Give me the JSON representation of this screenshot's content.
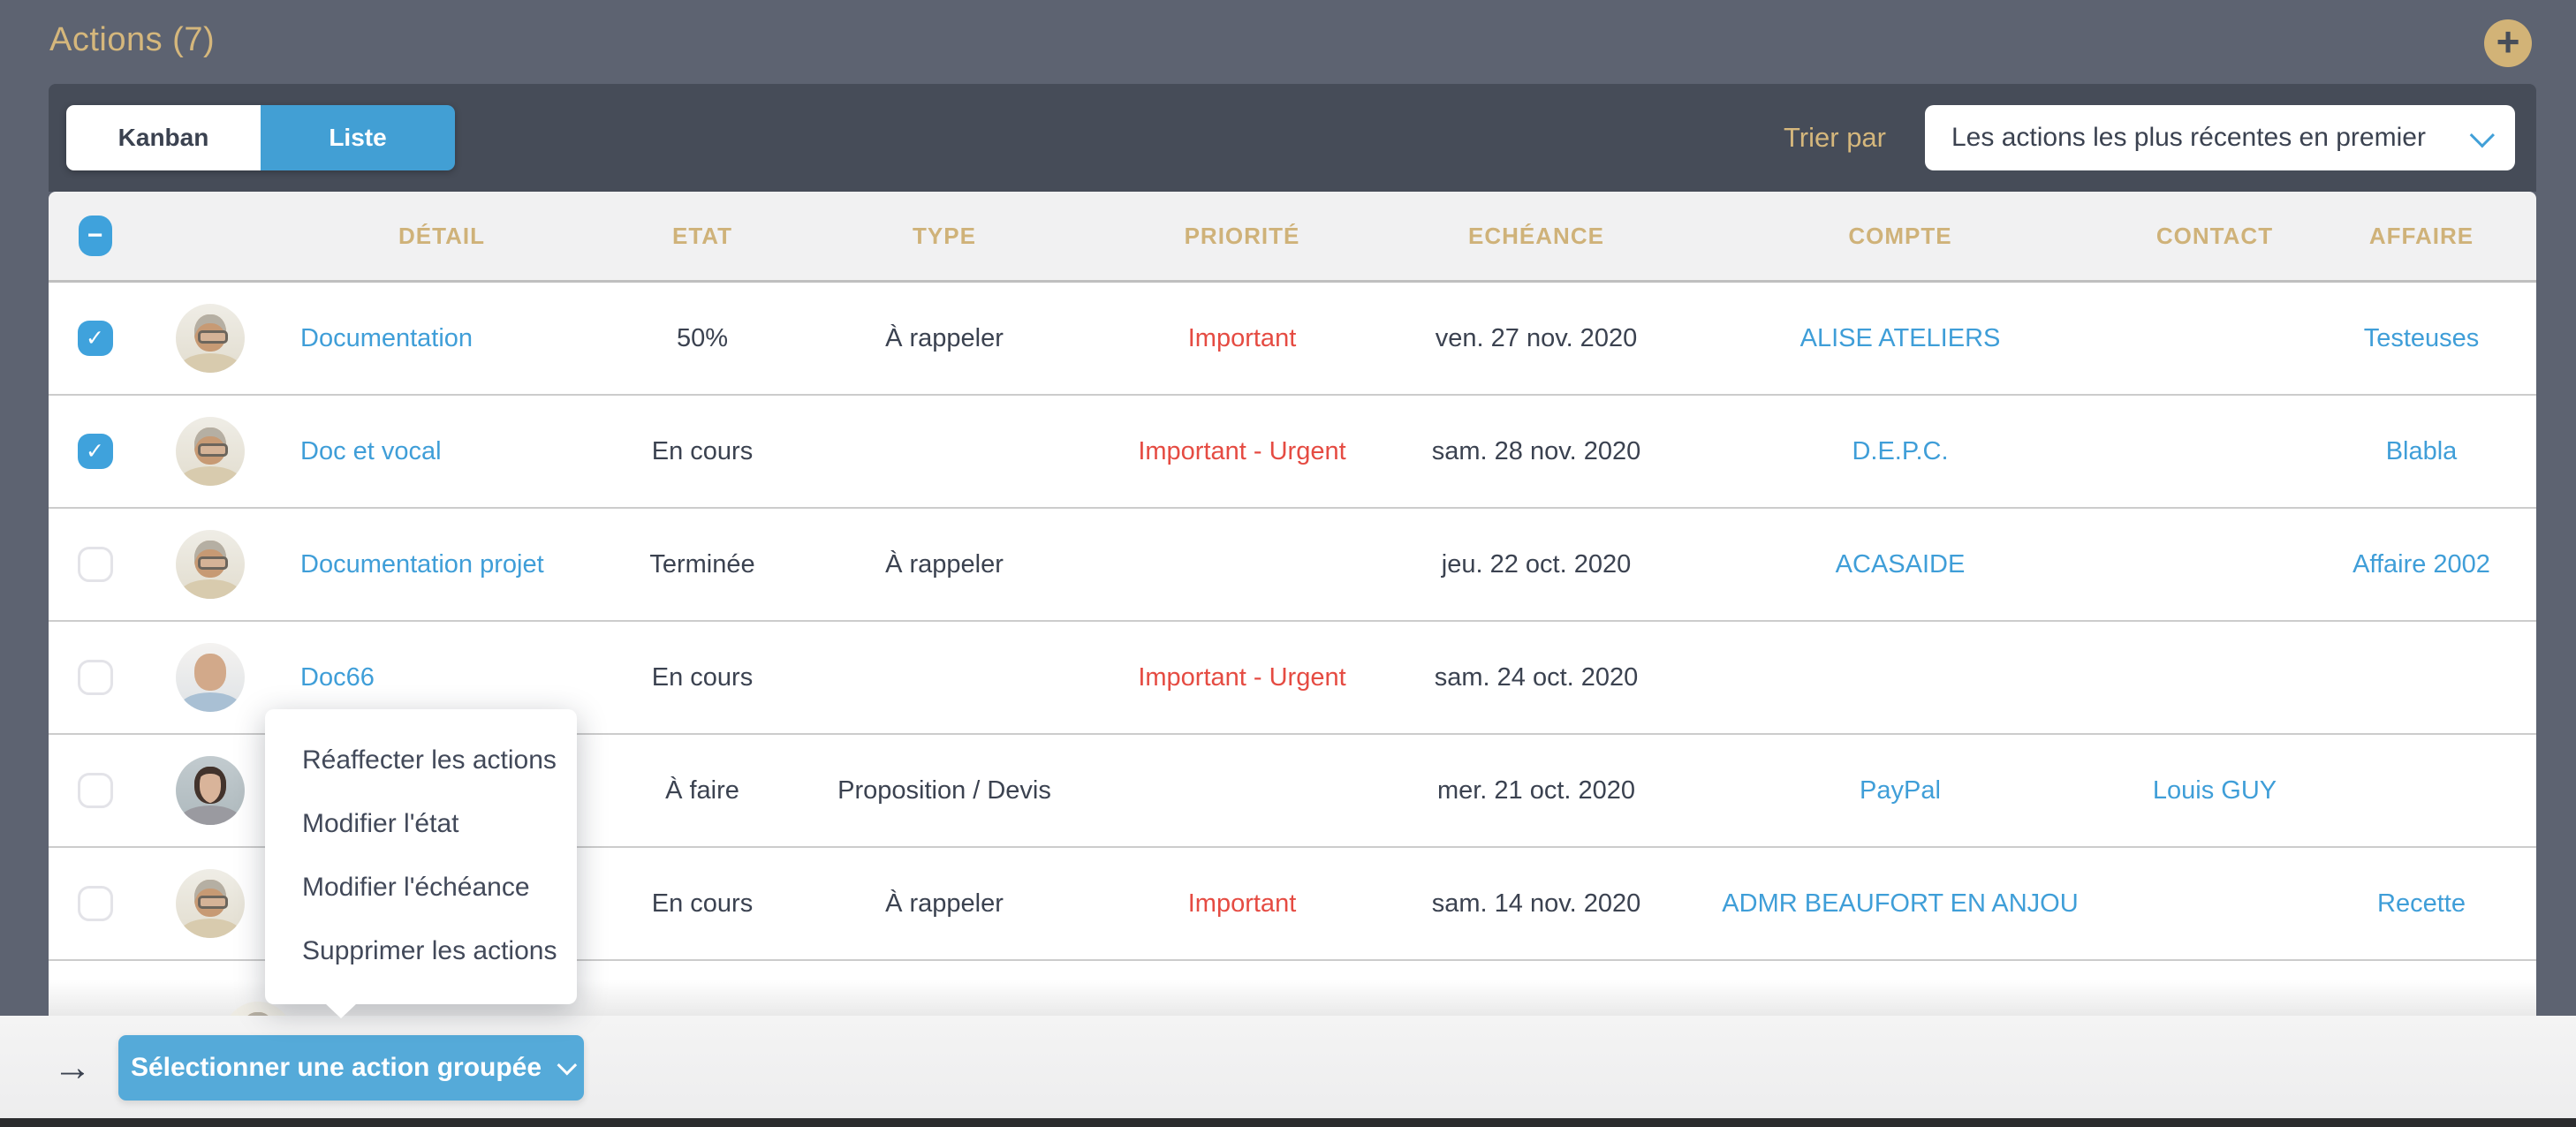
{
  "page": {
    "title": "Actions (7)"
  },
  "icons": {
    "add": "+",
    "check": "✓",
    "minus": "−",
    "arrow_right": "→"
  },
  "toolbar": {
    "view_toggle": {
      "kanban": "Kanban",
      "liste": "Liste",
      "active": "Liste"
    },
    "sort_label": "Trier par",
    "sort_value": "Les actions les plus récentes en premier"
  },
  "table": {
    "columns": [
      "DÉTAIL",
      "ETAT",
      "TYPE",
      "PRIORITÉ",
      "ECHÉANCE",
      "COMPTE",
      "CONTACT",
      "AFFAIRE"
    ],
    "rows": [
      {
        "checked": true,
        "avatar": "man-glasses",
        "detail": "Documentation",
        "etat": "50%",
        "type": "À rappeler",
        "priorite": "Important",
        "echeance": "ven. 27 nov. 2020",
        "compte": "ALISE ATELIERS",
        "contact": "",
        "affaire": "Testeuses"
      },
      {
        "checked": true,
        "avatar": "man-glasses",
        "detail": "Doc et vocal",
        "etat": "En cours",
        "type": "",
        "priorite": "Important - Urgent",
        "echeance": "sam. 28 nov. 2020",
        "compte": "D.E.P.C.",
        "contact": "",
        "affaire": "Blabla"
      },
      {
        "checked": false,
        "avatar": "man-glasses",
        "detail": "Documentation projet",
        "etat": "Terminée",
        "type": "À rappeler",
        "priorite": "",
        "echeance": "jeu. 22 oct. 2020",
        "compte": "ACASAIDE",
        "contact": "",
        "affaire": "Affaire 2002"
      },
      {
        "checked": false,
        "avatar": "man-bald",
        "detail": "Doc66",
        "etat": "En cours",
        "type": "",
        "priorite": "Important - Urgent",
        "echeance": "sam. 24 oct. 2020",
        "compte": "",
        "contact": "",
        "affaire": ""
      },
      {
        "checked": false,
        "avatar": "woman-dark-hair",
        "detail": "",
        "etat": "À faire",
        "type": "Proposition / Devis",
        "priorite": "",
        "echeance": "mer. 21 oct. 2020",
        "compte": "PayPal",
        "contact": "Louis GUY",
        "affaire": ""
      },
      {
        "checked": false,
        "avatar": "man-glasses",
        "detail": "",
        "etat": "En cours",
        "type": "À rappeler",
        "priorite": "Important",
        "echeance": "sam. 14 nov. 2020",
        "compte": "ADMR BEAUFORT EN ANJOU",
        "contact": "",
        "affaire": "Recette"
      }
    ],
    "partial_seventh_row": {
      "avatar": "man-glasses"
    }
  },
  "context_menu": {
    "items": [
      "Réaffecter les actions",
      "Modifier l'état",
      "Modifier l'échéance",
      "Supprimer les actions"
    ]
  },
  "footer": {
    "grouped_action_button": "Sélectionner une action groupée"
  },
  "colors": {
    "page_background": "#5d6371",
    "toolbar_background": "#464c58",
    "accent_gold": "#d2b377",
    "accent_blue": "#3f9ed8",
    "priority_red": "#e54b42",
    "text_dark": "#3b4250"
  }
}
